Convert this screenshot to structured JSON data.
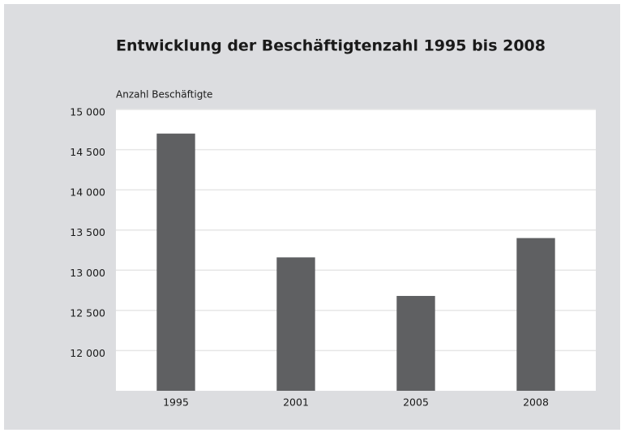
{
  "chart_data": {
    "type": "bar",
    "title": "Entwicklung der Beschäftigtenzahl 1995 bis 2008",
    "y_label": "Anzahl Beschäftigte",
    "categories": [
      "1995",
      "2001",
      "2005",
      "2008"
    ],
    "values": [
      14700,
      13160,
      12680,
      13400
    ],
    "color": "#5f6062",
    "ylim": [
      11500,
      15000
    ],
    "yticks": [
      {
        "value": 12000,
        "label": "12 000"
      },
      {
        "value": 12500,
        "label": "12 500"
      },
      {
        "value": 13000,
        "label": "13 000"
      },
      {
        "value": 13500,
        "label": "13 500"
      },
      {
        "value": 14000,
        "label": "14 000"
      },
      {
        "value": 14500,
        "label": "14 500"
      },
      {
        "value": 15000,
        "label": "15 000"
      }
    ],
    "grid": true
  }
}
